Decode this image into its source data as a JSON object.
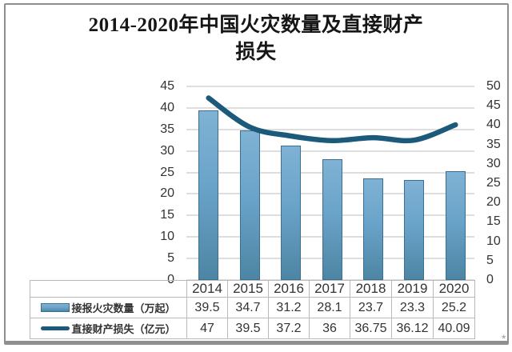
{
  "title": {
    "line1": "2014-2020年中国火灾数量及直接财产",
    "line2": "损失",
    "full": "2014-2020年中国火灾数量及直接财产损失"
  },
  "chart_data": {
    "type": "combo bar+line, dual y-axis",
    "categories": [
      "2014",
      "2015",
      "2016",
      "2017",
      "2018",
      "2019",
      "2020"
    ],
    "series": [
      {
        "name": "接报火灾数量（万起）",
        "type": "bar",
        "axis": "left",
        "values": [
          39.5,
          34.7,
          31.2,
          28.1,
          23.7,
          23.3,
          25.2
        ],
        "labels": [
          "39.5",
          "34.7",
          "31.2",
          "28.1",
          "23.7",
          "23.3",
          "25.2"
        ],
        "color": "#6aa3c9",
        "border_color": "#3a6f94"
      },
      {
        "name": "直接财产损失（亿元）",
        "type": "line",
        "axis": "right",
        "values": [
          47,
          39.5,
          37.2,
          36,
          36.75,
          36.12,
          40.09
        ],
        "labels": [
          "47",
          "39.5",
          "37.2",
          "36",
          "36.75",
          "36.12",
          "40.09"
        ],
        "color": "#1b5a7a"
      }
    ],
    "left_axis": {
      "min": 0,
      "max": 45,
      "step": 5,
      "ticks": [
        "45",
        "40",
        "35",
        "30",
        "25",
        "20",
        "15",
        "10",
        "5",
        "0"
      ]
    },
    "right_axis": {
      "min": 0,
      "max": 50,
      "step": 5,
      "ticks": [
        "50",
        "45",
        "40",
        "35",
        "30",
        "25",
        "20",
        "15",
        "10",
        "5",
        "0"
      ]
    },
    "grid": true,
    "grid_color": "#dedede",
    "legend_position": "table header bottom-left"
  },
  "watermark_mark": "*"
}
